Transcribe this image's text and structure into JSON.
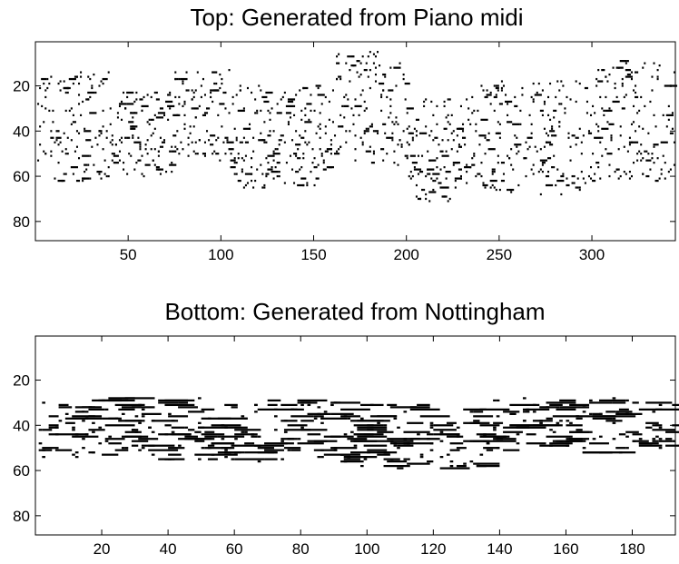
{
  "chart_data": [
    {
      "type": "heatmap",
      "subtype": "piano-roll",
      "title": "Top: Generated from Piano midi",
      "xlabel": "",
      "ylabel": "",
      "xlim": [
        0,
        345
      ],
      "ylim": [
        88,
        1
      ],
      "y_reversed": true,
      "x_ticks": [
        50,
        100,
        150,
        200,
        250,
        300
      ],
      "y_ticks": [
        20,
        40,
        60,
        80
      ],
      "grid": false,
      "note_color": "#000000",
      "notes_description_seed": 17,
      "region_segments": [
        {
          "x": [
            1,
            40
          ],
          "y_range": [
            14,
            62
          ]
        },
        {
          "x": [
            40,
            75
          ],
          "y_range": [
            22,
            60
          ]
        },
        {
          "x": [
            75,
            105
          ],
          "y_range": [
            12,
            53
          ]
        },
        {
          "x": [
            105,
            160
          ],
          "y_range": [
            20,
            65
          ]
        },
        {
          "x": [
            160,
            200
          ],
          "y_range": [
            5,
            55
          ]
        },
        {
          "x": [
            200,
            240
          ],
          "y_range": [
            25,
            71
          ]
        },
        {
          "x": [
            240,
            300
          ],
          "y_range": [
            18,
            68
          ]
        },
        {
          "x": [
            300,
            345
          ],
          "y_range": [
            9,
            62
          ]
        }
      ]
    },
    {
      "type": "heatmap",
      "subtype": "piano-roll",
      "title": "Bottom: Generated from Nottingham",
      "xlabel": "",
      "ylabel": "",
      "xlim": [
        0,
        193
      ],
      "ylim": [
        88,
        1
      ],
      "y_reversed": true,
      "x_ticks": [
        20,
        40,
        60,
        80,
        100,
        120,
        140,
        160,
        180
      ],
      "y_ticks": [
        20,
        40,
        60,
        80
      ],
      "grid": false,
      "note_color": "#000000",
      "notes_description_seed": 5,
      "region_segments": [
        {
          "x": [
            1,
            37
          ],
          "y_range": [
            28,
            54
          ]
        },
        {
          "x": [
            37,
            96
          ],
          "y_range": [
            28,
            56
          ]
        },
        {
          "x": [
            96,
            135
          ],
          "y_range": [
            30,
            59
          ]
        },
        {
          "x": [
            135,
            193
          ],
          "y_range": [
            28,
            52
          ]
        }
      ]
    }
  ]
}
